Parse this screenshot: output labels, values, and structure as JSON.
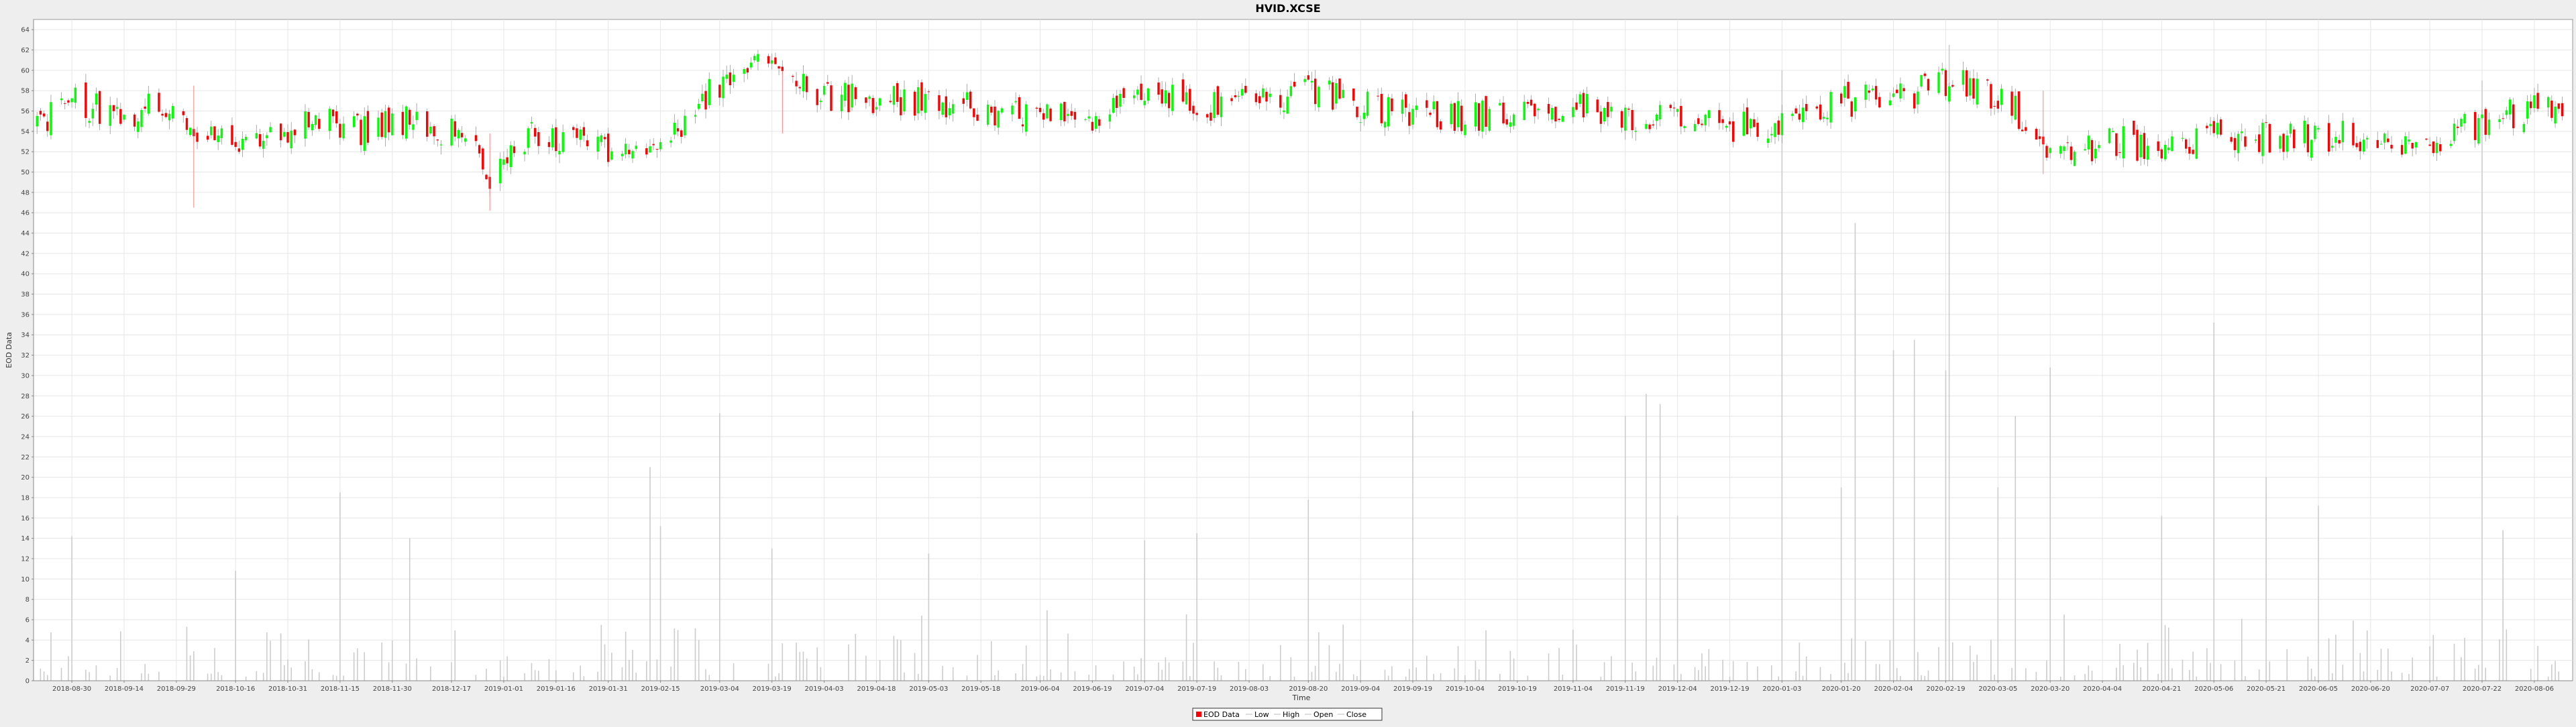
{
  "chart_data": {
    "type": "candlestick",
    "title": "HVID.XCSE",
    "xlabel": "Time",
    "ylabel": "EOD Data",
    "ylim": [
      0,
      65
    ],
    "yticks": [
      0,
      2,
      4,
      6,
      8,
      10,
      12,
      14,
      16,
      18,
      20,
      22,
      24,
      26,
      28,
      30,
      32,
      34,
      36,
      38,
      40,
      42,
      44,
      46,
      48,
      50,
      52,
      54,
      56,
      58,
      60,
      62,
      64
    ],
    "xlim": [
      "2018-08-19",
      "2020-08-17"
    ],
    "xticks": [
      "2018-08-30",
      "2018-09-14",
      "2018-09-29",
      "2018-10-16",
      "2018-10-31",
      "2018-11-15",
      "2018-11-30",
      "2018-12-17",
      "2019-01-01",
      "2019-01-16",
      "2019-01-31",
      "2019-02-15",
      "2019-03-04",
      "2019-03-19",
      "2019-04-03",
      "2019-04-18",
      "2019-05-03",
      "2019-05-18",
      "2019-06-04",
      "2019-06-19",
      "2019-07-04",
      "2019-07-19",
      "2019-08-03",
      "2019-08-20",
      "2019-09-04",
      "2019-09-19",
      "2019-10-04",
      "2019-10-19",
      "2019-11-04",
      "2019-11-19",
      "2019-12-04",
      "2019-12-19",
      "2020-01-03",
      "2020-01-20",
      "2020-02-04",
      "2020-02-19",
      "2020-03-05",
      "2020-03-20",
      "2020-04-04",
      "2020-04-21",
      "2020-05-06",
      "2020-05-21",
      "2020-06-05",
      "2020-06-20",
      "2020-07-07",
      "2020-07-22",
      "2020-08-06"
    ],
    "grid": true,
    "legend": [
      "EOD Data",
      "Low",
      "High",
      "Open",
      "Close"
    ],
    "legend_position": "bottom-center",
    "colors": {
      "up": "#00ff00",
      "down": "#ff0000",
      "volume": "#cccccc",
      "grid": "#e6e6e6",
      "plot_bg": "#ffffff",
      "axis": "#888888",
      "wick": "#999999"
    },
    "close_path": [
      [
        "2018-08-20",
        54.5
      ],
      [
        "2018-09-01",
        57
      ],
      [
        "2018-09-12",
        55.5
      ],
      [
        "2018-09-25",
        56.5
      ],
      [
        "2018-10-05",
        54.5
      ],
      [
        "2018-10-18",
        53
      ],
      [
        "2018-10-31",
        53.5
      ],
      [
        "2018-11-10",
        55.5
      ],
      [
        "2018-11-22",
        54
      ],
      [
        "2018-12-05",
        55
      ],
      [
        "2018-12-17",
        54
      ],
      [
        "2018-12-24",
        52
      ],
      [
        "2018-12-28",
        49
      ],
      [
        "2019-01-05",
        53.5
      ],
      [
        "2019-01-16",
        53
      ],
      [
        "2019-01-31",
        52.5
      ],
      [
        "2019-02-12",
        51.5
      ],
      [
        "2019-02-20",
        53.5
      ],
      [
        "2019-02-27",
        57
      ],
      [
        "2019-03-06",
        59.5
      ],
      [
        "2019-03-15",
        61
      ],
      [
        "2019-03-22",
        59
      ],
      [
        "2019-04-02",
        57.5
      ],
      [
        "2019-04-18",
        57
      ],
      [
        "2019-05-03",
        57
      ],
      [
        "2019-05-18",
        56.5
      ],
      [
        "2019-06-04",
        55
      ],
      [
        "2019-06-19",
        55.5
      ],
      [
        "2019-07-06",
        57.5
      ],
      [
        "2019-07-19",
        56.5
      ],
      [
        "2019-08-05",
        57
      ],
      [
        "2019-08-20",
        58
      ],
      [
        "2019-09-04",
        56.5
      ],
      [
        "2019-09-19",
        56
      ],
      [
        "2019-10-04",
        55.5
      ],
      [
        "2019-10-19",
        55.5
      ],
      [
        "2019-11-04",
        56.5
      ],
      [
        "2019-11-19",
        55.5
      ],
      [
        "2019-12-04",
        55
      ],
      [
        "2019-12-19",
        54.5
      ],
      [
        "2020-01-03",
        54.5
      ],
      [
        "2020-01-10",
        56.5
      ],
      [
        "2020-01-20",
        57
      ],
      [
        "2020-02-04",
        57
      ],
      [
        "2020-02-19",
        59
      ],
      [
        "2020-03-02",
        58
      ],
      [
        "2020-03-10",
        56
      ],
      [
        "2020-03-18",
        52
      ],
      [
        "2020-03-25",
        52
      ],
      [
        "2020-04-10",
        53
      ],
      [
        "2020-04-21",
        52
      ],
      [
        "2020-05-06",
        53.5
      ],
      [
        "2020-05-21",
        53.5
      ],
      [
        "2020-06-05",
        53.5
      ],
      [
        "2020-06-20",
        53.5
      ],
      [
        "2020-07-07",
        53
      ],
      [
        "2020-07-22",
        55
      ],
      [
        "2020-08-06",
        56
      ],
      [
        "2020-08-17",
        56.5
      ]
    ],
    "volume_spikes": [
      [
        "2018-08-30",
        14.2
      ],
      [
        "2018-10-16",
        10.8
      ],
      [
        "2018-11-15",
        18.5
      ],
      [
        "2018-12-05",
        14
      ],
      [
        "2019-02-12",
        21
      ],
      [
        "2019-02-15",
        15.2
      ],
      [
        "2019-03-04",
        26.3
      ],
      [
        "2019-03-19",
        13
      ],
      [
        "2019-05-03",
        12.5
      ],
      [
        "2019-07-04",
        13.8
      ],
      [
        "2019-07-19",
        14.5
      ],
      [
        "2019-08-20",
        17.8
      ],
      [
        "2019-09-19",
        26.5
      ],
      [
        "2019-11-19",
        26
      ],
      [
        "2019-11-25",
        28.2
      ],
      [
        "2019-11-29",
        27.2
      ],
      [
        "2019-12-04",
        16.2
      ],
      [
        "2020-01-03",
        60
      ],
      [
        "2020-01-05",
        42.8
      ],
      [
        "2020-01-20",
        19
      ],
      [
        "2020-01-24",
        45
      ],
      [
        "2020-02-04",
        32.5
      ],
      [
        "2020-02-10",
        33.5
      ],
      [
        "2020-02-19",
        30.5
      ],
      [
        "2020-02-20",
        62.5
      ],
      [
        "2020-03-05",
        19
      ],
      [
        "2020-03-10",
        26
      ],
      [
        "2020-03-14",
        26
      ],
      [
        "2020-03-20",
        30.8
      ],
      [
        "2020-04-21",
        16.2
      ],
      [
        "2020-05-06",
        35.2
      ],
      [
        "2020-05-21",
        20
      ],
      [
        "2020-06-05",
        17.2
      ],
      [
        "2020-07-22",
        59
      ],
      [
        "2020-07-28",
        14.8
      ]
    ]
  }
}
